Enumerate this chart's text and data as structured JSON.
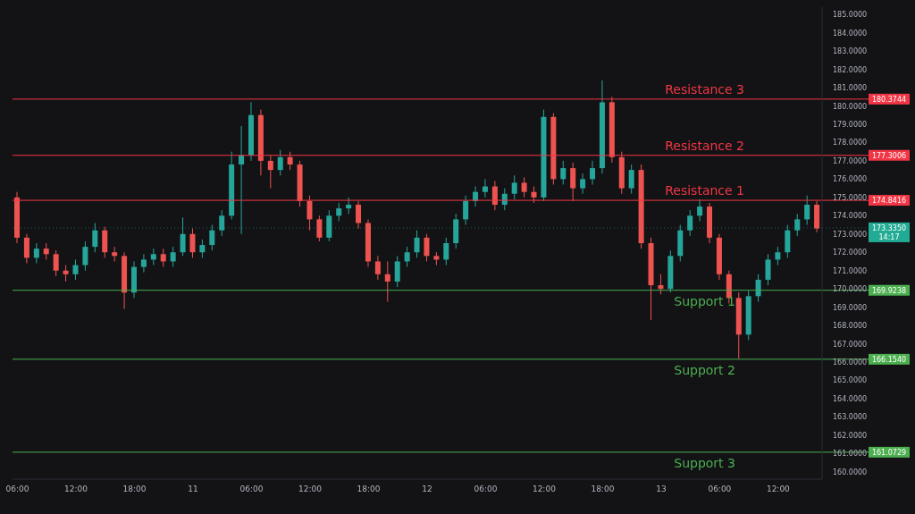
{
  "chart_data": {
    "type": "candlestick",
    "categories": [
      "06:00",
      null,
      null,
      null,
      null,
      null,
      "12:00",
      null,
      null,
      null,
      null,
      null,
      "18:00",
      null,
      null,
      null,
      null,
      null,
      "11",
      null,
      null,
      null,
      null,
      null,
      "06:00",
      null,
      null,
      null,
      null,
      null,
      "12:00",
      null,
      null,
      null,
      null,
      null,
      "18:00",
      null,
      null,
      null,
      null,
      null,
      "12",
      null,
      null,
      null,
      null,
      null,
      "06:00",
      null,
      null,
      null,
      null,
      null,
      "12:00",
      null,
      null,
      null,
      null,
      null,
      "18:00",
      null,
      null,
      null,
      null,
      null,
      "13",
      null,
      null,
      null,
      null,
      null,
      "06:00",
      null,
      null,
      null,
      null,
      null,
      "12:00",
      null,
      null,
      null,
      null
    ],
    "annotations": [
      {
        "text": "Resistance 3",
        "y": 180.3744
      },
      {
        "text": "Resistance 2",
        "y": 177.3006
      },
      {
        "text": "Resistance 1",
        "y": 174.8416
      },
      {
        "text": "Support 1",
        "y": 169.9238
      },
      {
        "text": "Support 2",
        "y": 166.154
      },
      {
        "text": "Support 3",
        "y": 161.0729
      },
      "14:17"
    ],
    "ohlc": [
      [
        175.0,
        175.3,
        172.5,
        172.8
      ],
      [
        172.8,
        173.0,
        171.4,
        171.7
      ],
      [
        171.7,
        172.5,
        171.4,
        172.2
      ],
      [
        172.2,
        172.5,
        171.6,
        171.9
      ],
      [
        171.9,
        172.1,
        170.7,
        171.0
      ],
      [
        171.0,
        171.3,
        170.4,
        170.8
      ],
      [
        170.8,
        171.6,
        170.5,
        171.3
      ],
      [
        171.3,
        172.6,
        171.0,
        172.3
      ],
      [
        172.3,
        173.6,
        172.0,
        173.2
      ],
      [
        173.2,
        173.4,
        171.7,
        172.0
      ],
      [
        172.0,
        172.3,
        171.5,
        171.8
      ],
      [
        171.8,
        172.0,
        168.9,
        169.8
      ],
      [
        169.8,
        171.5,
        169.5,
        171.2
      ],
      [
        171.2,
        171.9,
        170.9,
        171.6
      ],
      [
        171.6,
        172.2,
        171.3,
        171.9
      ],
      [
        171.9,
        172.2,
        171.2,
        171.5
      ],
      [
        171.5,
        172.3,
        171.2,
        172.0
      ],
      [
        172.0,
        173.9,
        171.8,
        173.0
      ],
      [
        173.0,
        173.3,
        171.7,
        172.0
      ],
      [
        172.0,
        172.7,
        171.7,
        172.4
      ],
      [
        172.4,
        173.5,
        172.1,
        173.2
      ],
      [
        173.2,
        174.3,
        172.9,
        174.0
      ],
      [
        174.0,
        177.5,
        173.8,
        176.8
      ],
      [
        176.8,
        178.9,
        173.0,
        177.3
      ],
      [
        177.3,
        180.2,
        177.0,
        179.5
      ],
      [
        179.5,
        179.8,
        176.2,
        177.0
      ],
      [
        177.0,
        177.3,
        175.5,
        176.5
      ],
      [
        176.5,
        177.6,
        176.2,
        177.2
      ],
      [
        177.2,
        177.5,
        176.5,
        176.8
      ],
      [
        176.8,
        177.0,
        174.5,
        174.8
      ],
      [
        174.8,
        175.1,
        173.2,
        173.8
      ],
      [
        173.8,
        174.0,
        172.6,
        172.8
      ],
      [
        172.8,
        174.3,
        172.6,
        174.0
      ],
      [
        174.0,
        174.7,
        173.7,
        174.4
      ],
      [
        174.4,
        175.0,
        174.1,
        174.6
      ],
      [
        174.6,
        174.8,
        173.3,
        173.6
      ],
      [
        173.6,
        173.8,
        171.2,
        171.5
      ],
      [
        171.5,
        171.8,
        170.5,
        170.8
      ],
      [
        170.8,
        171.5,
        169.3,
        170.4
      ],
      [
        170.4,
        171.8,
        170.1,
        171.5
      ],
      [
        171.5,
        172.3,
        171.2,
        172.0
      ],
      [
        172.0,
        173.2,
        171.7,
        172.8
      ],
      [
        172.8,
        173.0,
        171.5,
        171.8
      ],
      [
        171.8,
        172.0,
        171.3,
        171.6
      ],
      [
        171.6,
        172.8,
        171.3,
        172.5
      ],
      [
        172.5,
        174.1,
        172.2,
        173.8
      ],
      [
        173.8,
        175.1,
        173.5,
        174.8
      ],
      [
        174.8,
        175.6,
        174.5,
        175.3
      ],
      [
        175.3,
        176.0,
        175.0,
        175.6
      ],
      [
        175.6,
        175.9,
        174.3,
        174.6
      ],
      [
        174.6,
        175.5,
        174.3,
        175.2
      ],
      [
        175.2,
        176.2,
        174.9,
        175.8
      ],
      [
        175.8,
        176.1,
        175.0,
        175.3
      ],
      [
        175.3,
        175.6,
        174.7,
        175.0
      ],
      [
        175.0,
        179.8,
        174.8,
        179.4
      ],
      [
        179.4,
        179.6,
        175.7,
        176.0
      ],
      [
        176.0,
        177.0,
        175.7,
        176.6
      ],
      [
        176.6,
        176.9,
        174.8,
        175.5
      ],
      [
        175.5,
        176.3,
        175.2,
        176.0
      ],
      [
        176.0,
        177.0,
        175.7,
        176.6
      ],
      [
        176.6,
        181.4,
        176.3,
        180.2
      ],
      [
        180.2,
        180.5,
        176.9,
        177.2
      ],
      [
        177.2,
        177.5,
        175.2,
        175.5
      ],
      [
        175.5,
        176.8,
        175.2,
        176.5
      ],
      [
        176.5,
        176.8,
        172.2,
        172.5
      ],
      [
        172.5,
        172.8,
        168.3,
        170.2
      ],
      [
        170.2,
        170.8,
        169.7,
        170.0
      ],
      [
        170.0,
        172.1,
        169.8,
        171.8
      ],
      [
        171.8,
        173.5,
        171.5,
        173.2
      ],
      [
        173.2,
        174.3,
        172.9,
        174.0
      ],
      [
        174.0,
        174.9,
        173.7,
        174.5
      ],
      [
        174.5,
        174.7,
        172.5,
        172.8
      ],
      [
        172.8,
        173.0,
        170.5,
        170.8
      ],
      [
        170.8,
        171.0,
        169.2,
        169.5
      ],
      [
        169.5,
        169.8,
        166.2,
        167.5
      ],
      [
        167.5,
        169.9,
        167.2,
        169.6
      ],
      [
        169.6,
        170.8,
        169.3,
        170.5
      ],
      [
        170.5,
        171.9,
        170.2,
        171.6
      ],
      [
        171.6,
        172.3,
        171.3,
        172.0
      ],
      [
        172.0,
        173.5,
        171.7,
        173.2
      ],
      [
        173.2,
        174.1,
        172.9,
        173.8
      ],
      [
        173.8,
        175.1,
        173.5,
        174.6
      ],
      [
        174.6,
        174.8,
        173.1,
        173.3
      ]
    ],
    "colors": [
      "#ef5350",
      "#ef5350",
      "#26a69a",
      "#ef5350",
      "#ef5350",
      "#ef5350",
      "#26a69a",
      "#26a69a",
      "#26a69a",
      "#ef5350",
      "#ef5350",
      "#ef5350",
      "#26a69a",
      "#26a69a",
      "#26a69a",
      "#ef5350",
      "#26a69a",
      "#26a69a",
      "#ef5350",
      "#26a69a",
      "#26a69a",
      "#26a69a",
      "#26a69a",
      "#26a69a",
      "#26a69a",
      "#ef5350",
      "#ef5350",
      "#26a69a",
      "#ef5350",
      "#ef5350",
      "#ef5350",
      "#ef5350",
      "#26a69a",
      "#26a69a",
      "#26a69a",
      "#ef5350",
      "#ef5350",
      "#ef5350",
      "#ef5350",
      "#26a69a",
      "#26a69a",
      "#26a69a",
      "#ef5350",
      "#ef5350",
      "#26a69a",
      "#26a69a",
      "#26a69a",
      "#26a69a",
      "#26a69a",
      "#ef5350",
      "#26a69a",
      "#26a69a",
      "#ef5350",
      "#ef5350",
      "#26a69a",
      "#ef5350",
      "#26a69a",
      "#ef5350",
      "#26a69a",
      "#26a69a",
      "#26a69a",
      "#ef5350",
      "#ef5350",
      "#26a69a",
      "#ef5350",
      "#ef5350",
      "#ef5350",
      "#26a69a",
      "#26a69a",
      "#26a69a",
      "#26a69a",
      "#ef5350",
      "#ef5350",
      "#ef5350",
      "#ef5350",
      "#26a69a",
      "#26a69a",
      "#26a69a",
      "#26a69a",
      "#26a69a",
      "#26a69a",
      "#26a69a",
      "#ef5350"
    ],
    "ylim": [
      159.6,
      185.4
    ],
    "yticks": [
      {
        "value": 160,
        "label": "160.0000"
      },
      {
        "value": 161,
        "label": "161.0000"
      },
      {
        "value": 162,
        "label": "162.0000"
      },
      {
        "value": 163,
        "label": "163.0000"
      },
      {
        "value": 164,
        "label": "164.0000"
      },
      {
        "value": 165,
        "label": "165.0000"
      },
      {
        "value": 166,
        "label": "166.0000"
      },
      {
        "value": 167,
        "label": "167.0000"
      },
      {
        "value": 168,
        "label": "168.0000"
      },
      {
        "value": 169,
        "label": "169.0000"
      },
      {
        "value": 170,
        "label": "170.0000"
      },
      {
        "value": 171,
        "label": "171.0000"
      },
      {
        "value": 172,
        "label": "172.0000"
      },
      {
        "value": 173,
        "label": "173.0000"
      },
      {
        "value": 174,
        "label": "174.0000"
      },
      {
        "value": 175,
        "label": "175.0000"
      },
      {
        "value": 176,
        "label": "176.0000"
      },
      {
        "value": 177,
        "label": "177.0000"
      },
      {
        "value": 178,
        "label": "178.0000"
      },
      {
        "value": 179,
        "label": "179.0000"
      },
      {
        "value": 180,
        "label": "180.0000"
      },
      {
        "value": 181,
        "label": "181.0000"
      },
      {
        "value": 182,
        "label": "182.0000"
      },
      {
        "value": 183,
        "label": "183.0000"
      },
      {
        "value": 184,
        "label": "184.0000"
      },
      {
        "value": 185,
        "label": "185.0000"
      }
    ],
    "ref_lines": [
      {
        "axis": "y",
        "value": 180.3744,
        "label": "180.3744",
        "color": "#f23645"
      },
      {
        "axis": "y",
        "value": 177.3006,
        "label": "177.3006",
        "color": "#f23645"
      },
      {
        "axis": "y",
        "value": 174.8416,
        "label": "174.8416",
        "color": "#f23645"
      },
      {
        "axis": "y",
        "value": 169.9238,
        "label": "169.9238",
        "color": "#4caf50"
      },
      {
        "axis": "y",
        "value": 166.154,
        "label": "166.1540",
        "color": "#4caf50"
      },
      {
        "axis": "y",
        "value": 161.0729,
        "label": "161.0729",
        "color": "#4caf50"
      },
      {
        "axis": "y",
        "value": 173.335,
        "label": "173.3350",
        "color": "#22ab94",
        "line_style": "dotted"
      }
    ]
  }
}
